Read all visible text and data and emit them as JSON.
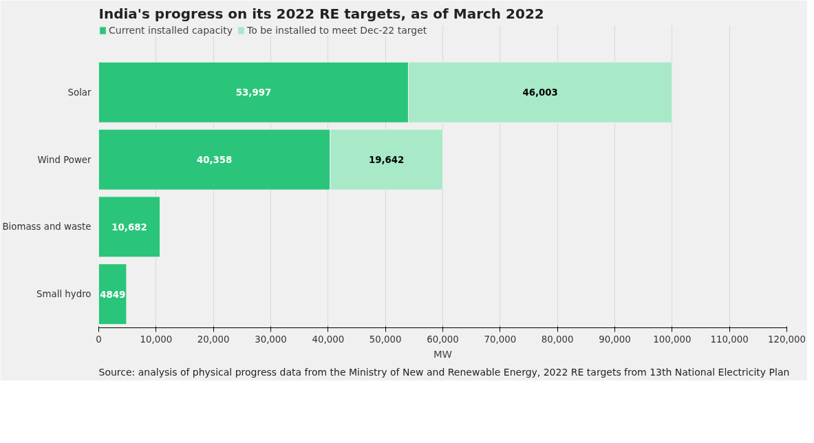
{
  "chart_data": {
    "type": "bar",
    "orientation": "horizontal",
    "stacked": true,
    "title": "India's progress on its 2022 RE targets, as of March 2022",
    "xlabel": "MW",
    "categories": [
      "Solar",
      "Wind Power",
      "Biomass and waste",
      "Small hydro"
    ],
    "series": [
      {
        "name": "Current installed capacity",
        "color": "#2ac57a",
        "values": [
          53997,
          40358,
          10682,
          4849
        ],
        "value_labels": [
          "53,997",
          "40,358",
          "10,682",
          "4849"
        ]
      },
      {
        "name": "To be installed to meet Dec-22 target",
        "color": "#a8e9c8",
        "values": [
          46003,
          19642,
          null,
          null
        ],
        "value_labels": [
          "46,003",
          "19,642",
          null,
          null
        ]
      }
    ],
    "xlim": [
      0,
      120000
    ],
    "xticks": [
      {
        "value": 0,
        "label": "0"
      },
      {
        "value": 10000,
        "label": "10,000"
      },
      {
        "value": 20000,
        "label": "20,000"
      },
      {
        "value": 30000,
        "label": "30,000"
      },
      {
        "value": 40000,
        "label": "40,000"
      },
      {
        "value": 50000,
        "label": "50,000"
      },
      {
        "value": 60000,
        "label": "60,000"
      },
      {
        "value": 70000,
        "label": "70,000"
      },
      {
        "value": 80000,
        "label": "80,000"
      },
      {
        "value": 90000,
        "label": "90,000"
      },
      {
        "value": 100000,
        "label": "100,000"
      },
      {
        "value": 110000,
        "label": "110,000"
      },
      {
        "value": 120000,
        "label": "120,000"
      }
    ],
    "grid": "x",
    "legend": "top left",
    "annotations": [
      "Source: analysis of physical progress data from the Ministry of New and Renewable Energy, 2022 RE targets from 13th National Electricity Plan"
    ]
  }
}
